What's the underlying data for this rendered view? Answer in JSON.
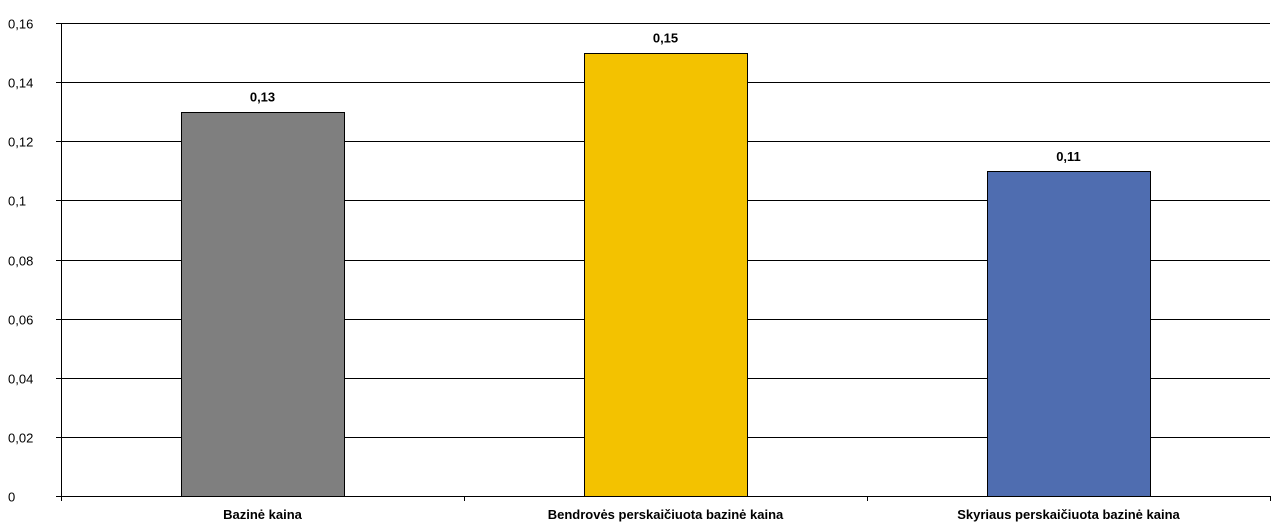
{
  "chart_data": {
    "type": "bar",
    "categories": [
      "Bazinė kaina",
      "Bendrovės perskaičiuota bazinė kaina",
      "Skyriaus perskaičiuota bazinė kaina"
    ],
    "values": [
      0.13,
      0.15,
      0.11
    ],
    "value_labels": [
      "0,13",
      "0,15",
      "0,11"
    ],
    "colors": [
      "#7f7f7f",
      "#f3c200",
      "#4f6db0"
    ],
    "ylim": [
      0,
      0.16
    ],
    "yticks": [
      0,
      0.02,
      0.04,
      0.06,
      0.08,
      0.1,
      0.12,
      0.14,
      0.16
    ],
    "ytick_labels": [
      "0",
      "0,02",
      "0,04",
      "0,06",
      "0,08",
      "0,1",
      "0,12",
      "0,14",
      "0,16"
    ],
    "grid": true,
    "legend": "none"
  }
}
